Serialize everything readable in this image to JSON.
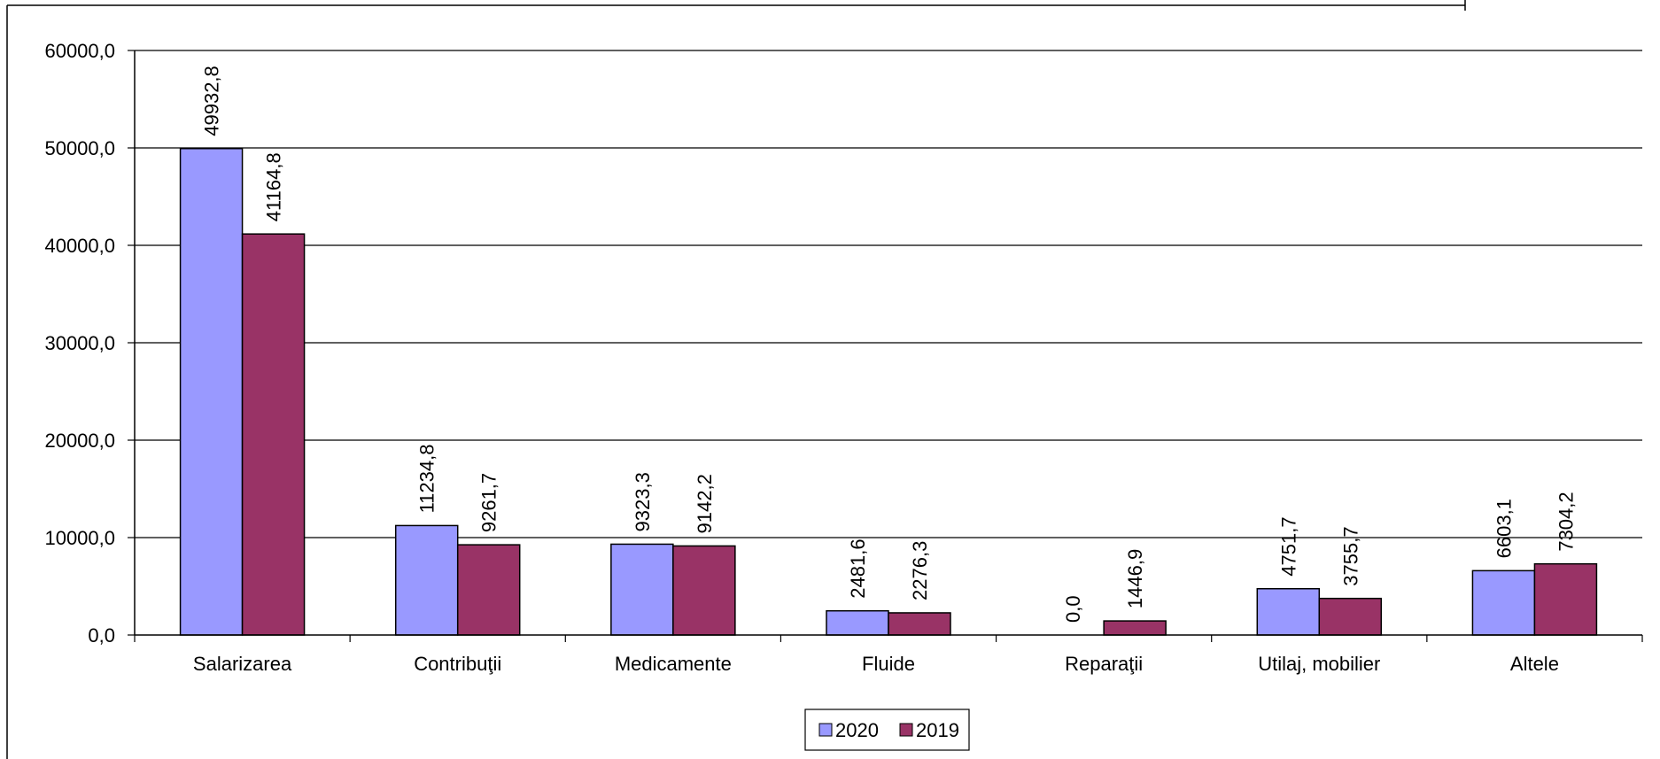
{
  "chart_data": {
    "type": "bar",
    "categories": [
      "Salarizarea",
      "Contribuţii",
      "Medicamente",
      "Fluide",
      "Reparaţii",
      "Utilaj, mobilier",
      "Altele"
    ],
    "series": [
      {
        "name": "2020",
        "color": "#9999ff",
        "values": [
          49932.8,
          11234.8,
          9323.3,
          2481.6,
          0.0,
          4751.7,
          6603.1
        ],
        "labels": [
          "49932,8",
          "11234,8",
          "9323,3",
          "2481,6",
          "0,0",
          "4751,7",
          "6603,1"
        ]
      },
      {
        "name": "2019",
        "color": "#993366",
        "values": [
          41164.8,
          9261.7,
          9142.2,
          2276.3,
          1446.9,
          3755.7,
          7304.2
        ],
        "labels": [
          "41164,8",
          "9261,7",
          "9142,2",
          "2276,3",
          "1446,9",
          "3755,7",
          "7304,2"
        ]
      }
    ],
    "title": "",
    "xlabel": "",
    "ylabel": "",
    "ylim": [
      0,
      60000
    ],
    "yticks": [
      0,
      10000,
      20000,
      30000,
      40000,
      50000,
      60000
    ],
    "ytick_labels": [
      "0,0",
      "10000,0",
      "20000,0",
      "30000,0",
      "40000,0",
      "50000,0",
      "60000,0"
    ],
    "grid": true,
    "legend_position": "bottom-center"
  }
}
